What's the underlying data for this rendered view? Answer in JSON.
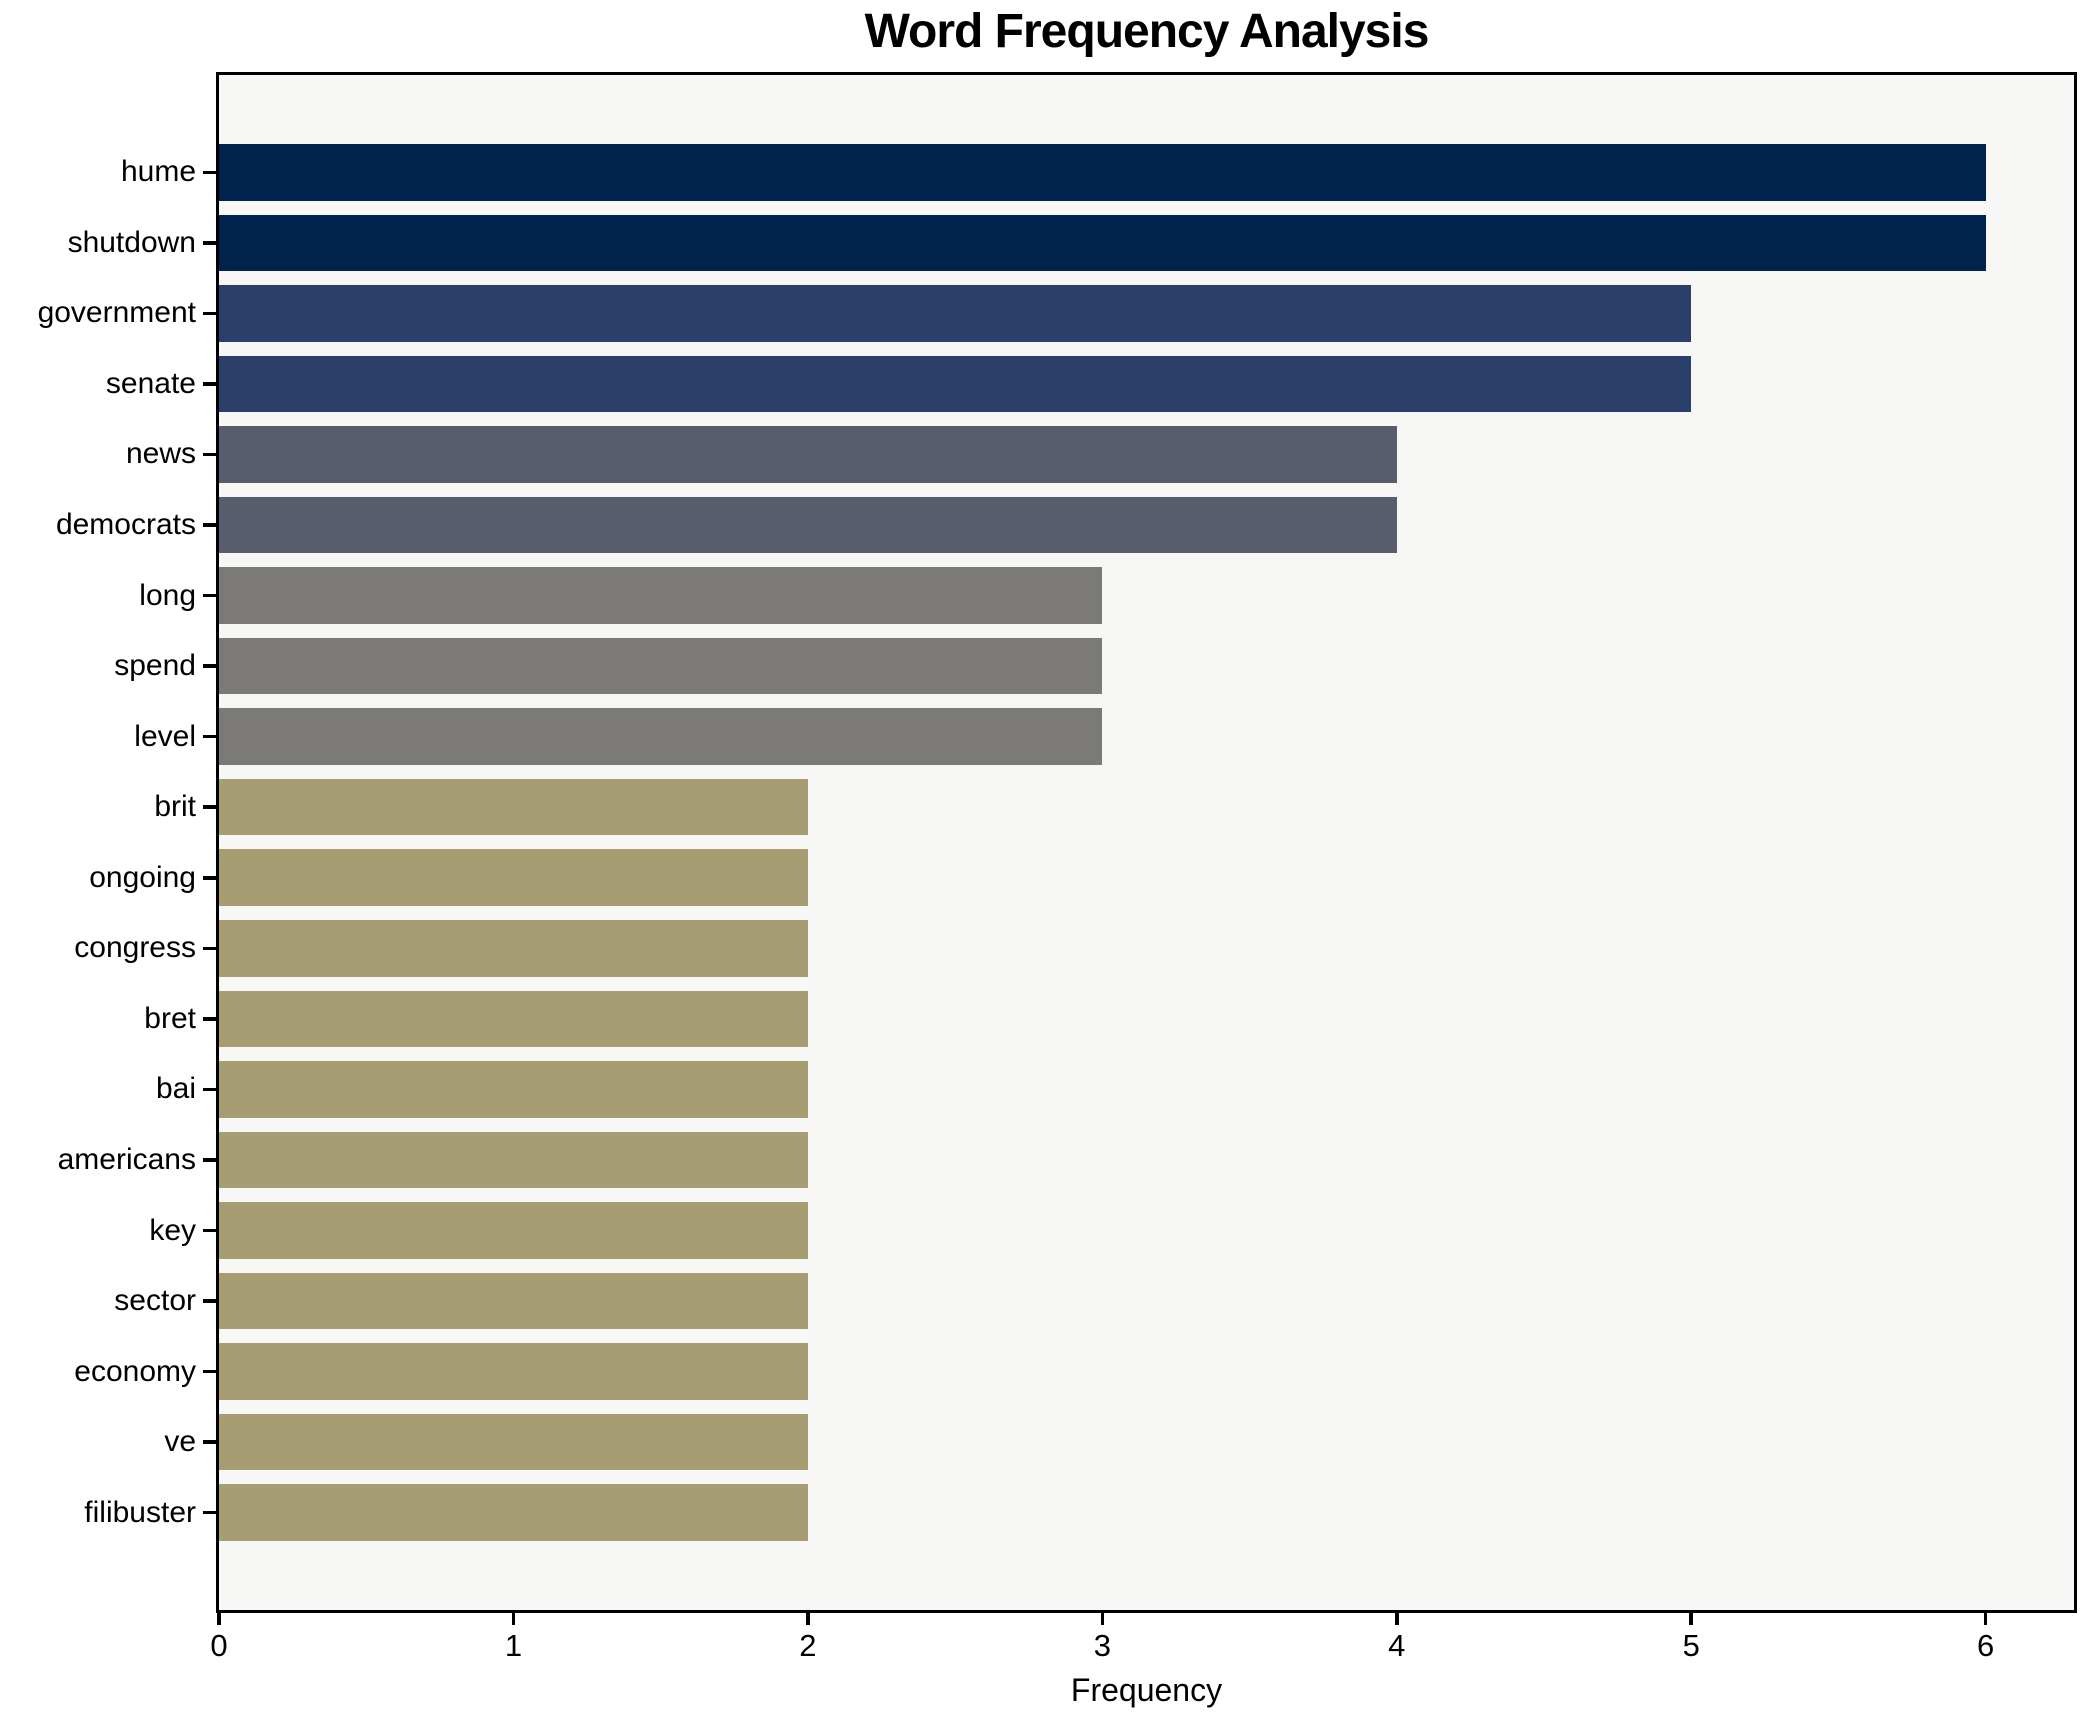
{
  "figure": {
    "background": "#ffffff",
    "plot_background": "#f7f7f6",
    "spine_color": "#000000"
  },
  "chart_data": {
    "type": "bar",
    "orientation": "horizontal",
    "title": "Word Frequency Analysis",
    "xlabel": "Frequency",
    "ylabel": "",
    "categories": [
      "hume",
      "shutdown",
      "government",
      "senate",
      "news",
      "democrats",
      "long",
      "spend",
      "level",
      "brit",
      "ongoing",
      "congress",
      "bret",
      "bai",
      "americans",
      "key",
      "sector",
      "economy",
      "ve",
      "filibuster"
    ],
    "values": [
      6,
      6,
      5,
      5,
      4,
      4,
      3,
      3,
      3,
      2,
      2,
      2,
      2,
      2,
      2,
      2,
      2,
      2,
      2,
      2
    ],
    "xticks": [
      0,
      1,
      2,
      3,
      4,
      5,
      6
    ],
    "xlim": [
      0,
      6.3
    ],
    "grid": false,
    "legend": "none",
    "value_color_map": {
      "6": "#02234d",
      "5": "#2c3f6b",
      "4": "#575d6d",
      "3": "#7b7a76",
      "2": "#a69d72"
    }
  }
}
